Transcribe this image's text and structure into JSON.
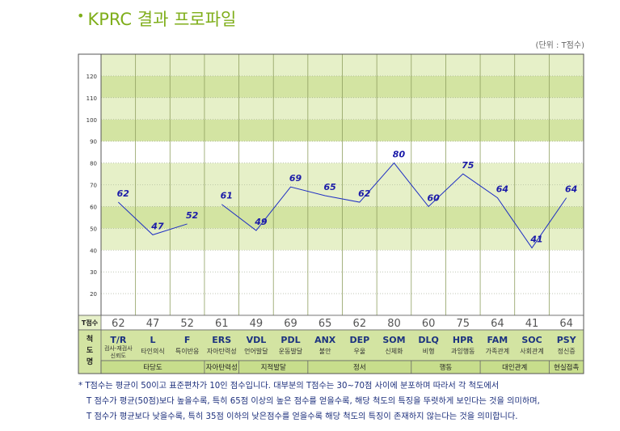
{
  "header": {
    "bullet": "•",
    "title": "KPRC 결과 프로파일",
    "unit": "(단위 : T점수)"
  },
  "table": {
    "tscore_label": "T점수",
    "scale_name_label": [
      "척",
      "도",
      "명"
    ]
  },
  "colors": {
    "line": "#1f2fc4",
    "label": "#1a1aa8",
    "band_dark": "#d3e4a2",
    "band_light": "#e6f0c8",
    "band_white": "#ffffff",
    "grid": "#8f9d6a",
    "group_row": "#c7dd8c",
    "code_text": "#1c3380",
    "title": "#7fae1a"
  },
  "chart_data": {
    "type": "line",
    "title": "KPRC 결과 프로파일",
    "ylabel": "T점수",
    "ylim": [
      10,
      130
    ],
    "yticks": [
      20,
      30,
      40,
      50,
      60,
      70,
      80,
      90,
      100,
      110,
      120
    ],
    "grid": true,
    "categories": [
      "T/R",
      "L",
      "F",
      "ERS",
      "VDL",
      "PDL",
      "ANX",
      "DEP",
      "SOM",
      "DLQ",
      "HPR",
      "FAM",
      "SOC",
      "PSY"
    ],
    "category_names": [
      "검사-재검사 신뢰도",
      "타인의식",
      "특이반응",
      "자아탄력성",
      "언어발달",
      "운동발달",
      "불안",
      "우울",
      "신체화",
      "비행",
      "과잉행동",
      "가족관계",
      "사회관계",
      "정신증"
    ],
    "values": [
      62,
      47,
      52,
      61,
      49,
      69,
      65,
      62,
      80,
      60,
      75,
      64,
      41,
      64
    ],
    "line_segments": [
      [
        0,
        2
      ],
      [
        3,
        13
      ]
    ],
    "groups": [
      {
        "name": "타당도",
        "start": 0,
        "end": 2
      },
      {
        "name": "자아탄력성",
        "start": 3,
        "end": 3
      },
      {
        "name": "지적발달",
        "start": 4,
        "end": 5
      },
      {
        "name": "정서",
        "start": 6,
        "end": 8
      },
      {
        "name": "행동",
        "start": 9,
        "end": 10
      },
      {
        "name": "대인관계",
        "start": 11,
        "end": 12
      },
      {
        "name": "현실접촉",
        "start": 13,
        "end": 13
      }
    ]
  },
  "notes": [
    "* T점수는 평균이 50이고 표준편차가 10인 점수입니다. 대부분의 T점수는 30~70점 사이에 분포하며 따라서 각 척도에서",
    "T 점수가 평균(50점)보다 높을수록, 특히 65점 이상의 높은 점수를 얻을수록, 해당 척도의 특징을 뚜렷하게 보인다는 것을 의미하며,",
    "T 점수가 평균보다 낮을수록, 특히 35점 이하의 낮은점수를 얻을수록 해당 척도의 특징이 존재하지 않는다는 것을 의미합니다."
  ]
}
